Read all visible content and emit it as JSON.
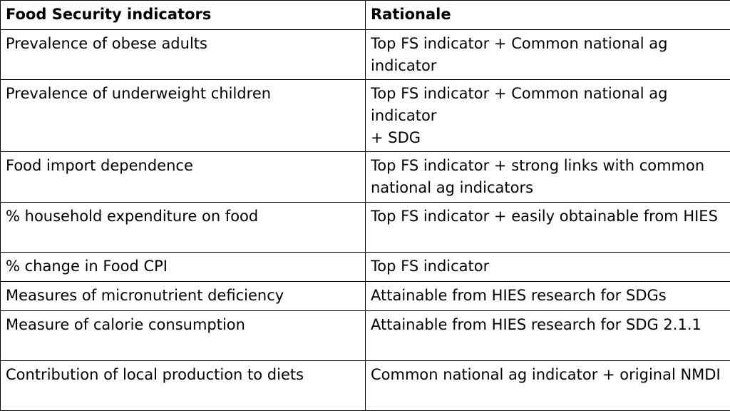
{
  "table": {
    "headers": [
      "Food Security indicators",
      "Rationale"
    ],
    "rows": [
      [
        "Prevalence of obese adults",
        "Top FS indicator + Common national ag indicator"
      ],
      [
        "Prevalence of underweight children",
        "Top FS indicator + Common national ag indicator\n+ SDG"
      ],
      [
        "Food import dependence",
        "Top FS indicator + strong links with common national ag indicators"
      ],
      [
        "% household expenditure on food",
        "Top FS indicator + easily obtainable from HIES"
      ],
      [
        "% change in Food CPI",
        "Top FS indicator"
      ],
      [
        "Measures of micronutrient deficiency",
        "Attainable from HIES research for SDGs"
      ],
      [
        "Measure of calorie consumption",
        "Attainable from HIES research for SDG 2.1.1"
      ],
      [
        "Contribution of local production to diets",
        "Common national ag indicator + original NMDI"
      ]
    ]
  }
}
